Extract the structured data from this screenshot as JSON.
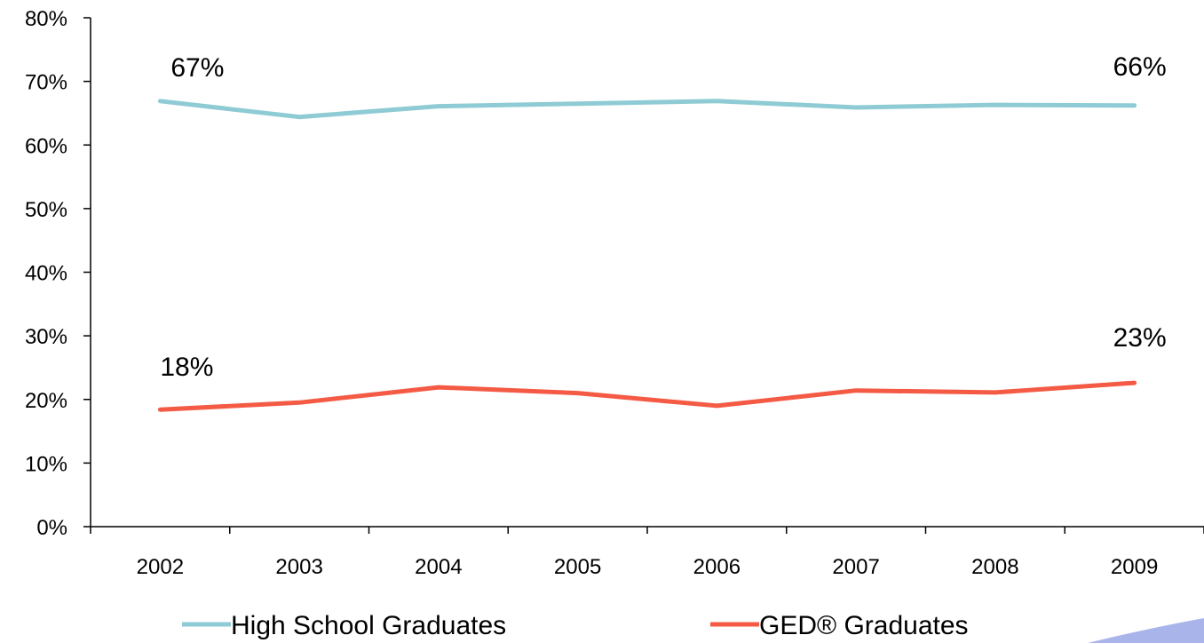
{
  "chart_data": {
    "type": "line",
    "categories": [
      "2002",
      "2003",
      "2004",
      "2005",
      "2006",
      "2007",
      "2008",
      "2009"
    ],
    "ylim": [
      0,
      80
    ],
    "yticks": [
      "0%",
      "10%",
      "20%",
      "30%",
      "40%",
      "50%",
      "60%",
      "70%",
      "80%"
    ],
    "grid": false,
    "legend_position": "bottom",
    "series": [
      {
        "name": "High School Graduates",
        "color": "#8ECBD4",
        "values": [
          66.9,
          64.4,
          66.1,
          66.5,
          66.9,
          65.9,
          66.3,
          66.2
        ],
        "labels": {
          "first": "67%",
          "last": "66%"
        }
      },
      {
        "name": "GED® Graduates",
        "color": "#F45A44",
        "values": [
          18.4,
          19.5,
          21.9,
          21.0,
          19.0,
          21.4,
          21.1,
          22.6
        ],
        "labels": {
          "first": "18%",
          "last": "23%"
        }
      }
    ]
  }
}
